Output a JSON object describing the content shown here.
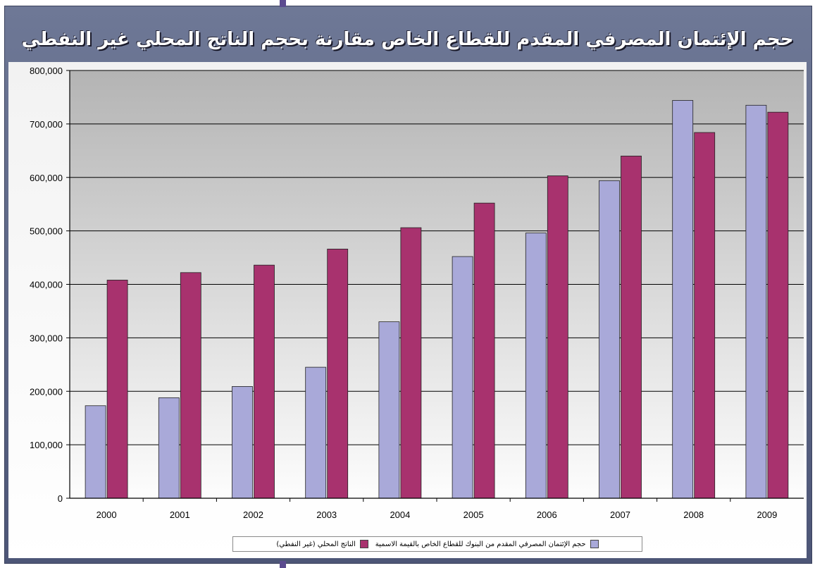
{
  "chart_data": {
    "type": "bar",
    "title": "حجم الإئتمان المصرفي المقدم للقطاع الخاص مقارنة بحجم الناتج المحلي غير النفطي (القطاعين الخاص والحكومي)",
    "categories": [
      "2000",
      "2001",
      "2002",
      "2003",
      "2004",
      "2005",
      "2006",
      "2007",
      "2008",
      "2009"
    ],
    "series": [
      {
        "name": "حجم الإئتمان المصرفي المقدم من البنوك للقطاع الخاص بالقيمة الاسمية",
        "color": "#a9a9d9",
        "values": [
          173000,
          188000,
          209000,
          245000,
          330000,
          452000,
          496000,
          594000,
          744000,
          735000
        ]
      },
      {
        "name": "الناتج المحلي (غير النفطي)",
        "color": "#a8326e",
        "values": [
          408000,
          422000,
          436000,
          466000,
          506000,
          552000,
          603000,
          640000,
          684000,
          722000
        ]
      }
    ],
    "ylim": [
      0,
      800000
    ],
    "yticks": [
      "0",
      "100,000",
      "200,000",
      "300,000",
      "400,000",
      "500,000",
      "600,000",
      "700,000",
      "800,000"
    ],
    "xlabel": "",
    "ylabel": "",
    "grid": true,
    "legend_position": "bottom"
  }
}
